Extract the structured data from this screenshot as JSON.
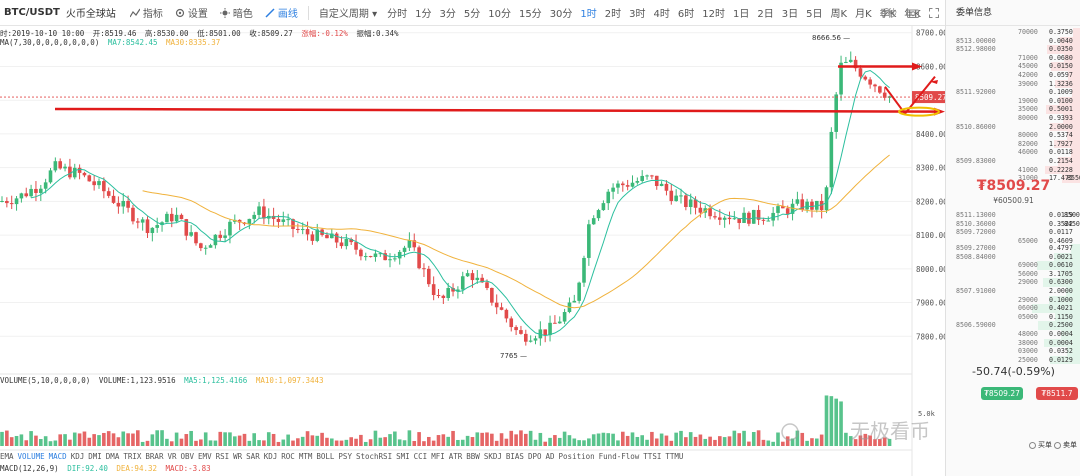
{
  "toolbar": {
    "symbol": "BTC/USDT",
    "exchange": "火币全球站",
    "indicators_label": "指标",
    "settings_label": "设置",
    "dark_label": "暗色",
    "draw_label": "画线",
    "custom_period_label": "自定义周期",
    "periods": [
      "分时",
      "1分",
      "3分",
      "5分",
      "10分",
      "15分",
      "30分",
      "1时",
      "2时",
      "3时",
      "4时",
      "6时",
      "12时",
      "1日",
      "2日",
      "3日",
      "5日",
      "周K",
      "月K",
      "季K",
      "年K"
    ],
    "active_period": "1时",
    "countdown": "0秒"
  },
  "ohlc_info": {
    "time": "时:2019-10-10 10:00",
    "open": "开:8519.46",
    "high": "高:8530.00",
    "low": "低:8501.00",
    "close": "收:8509.27",
    "change": "涨幅:-0.12%",
    "amplitude": "振幅:0.34%"
  },
  "ma_info": {
    "params": "MA(7,30,0,0,0,0,0,0,0)",
    "ma7": "MA7:8542.45",
    "ma30": "MA30:8335.37"
  },
  "price_labels": {
    "high_marker": "8666.56",
    "low_marker": "7765",
    "current_tag": "8509.27",
    "axis_ticks": [
      "8700.00",
      "8600.00",
      "8500.00",
      "8400.00",
      "8300.00",
      "8200.00",
      "8100.00",
      "8000.00",
      "7900.00",
      "7800.00"
    ]
  },
  "volume_info": {
    "params": "VOLUME(5,10,0,0,0,0)",
    "volume": "VOLUME:1,123.9516",
    "ma5": "MA5:1,125.4166",
    "ma10": "MA10:1,097.3443",
    "axis_tick": "5.0k"
  },
  "indicator_tabs": [
    "EMA",
    "VOLUME",
    "MACD",
    "KDJ",
    "DMI",
    "DMA",
    "TRIX",
    "BRAR",
    "VR",
    "OBV",
    "EMV",
    "RSI",
    "WR",
    "SAR",
    "KDJ",
    "ROC",
    "MTM",
    "BOLL",
    "PSY",
    "StochRSI",
    "SMI",
    "CCI",
    "MFI",
    "ATR",
    "BBW",
    "SKDJ",
    "BIAS",
    "DPO",
    "AD",
    "Position",
    "Fund-Flow",
    "TTSI",
    "TTMU"
  ],
  "macd_info": {
    "params": "MACD(12,26,9)",
    "dif": "DIF:92.40",
    "dea": "DEA:94.32",
    "macd": "MACD:-3.83"
  },
  "order_book": {
    "title": "委单信息",
    "asks": [
      {
        "p": "",
        "a": "70000",
        "t": "0.3750"
      },
      {
        "p": "8513.00000",
        "a": "",
        "t": "0.0040"
      },
      {
        "p": "8512.98000",
        "a": "",
        "t": "0.0350"
      },
      {
        "p": "",
        "a": "71000",
        "t": "0.0680"
      },
      {
        "p": "",
        "a": "45000",
        "t": "0.0150"
      },
      {
        "p": "",
        "a": "42000",
        "t": "0.0597"
      },
      {
        "p": "",
        "a": "39000",
        "t": "1.3236"
      },
      {
        "p": "8511.92000",
        "a": "",
        "t": "0.1009"
      },
      {
        "p": "",
        "a": "19000",
        "t": "0.0100"
      },
      {
        "p": "",
        "a": "35000",
        "t": "0.5001"
      },
      {
        "p": "",
        "a": "80000",
        "t": "0.9393"
      },
      {
        "p": "8510.86000",
        "a": "",
        "t": "2.0000"
      },
      {
        "p": "",
        "a": "80000",
        "t": "0.5374"
      },
      {
        "p": "",
        "a": "82000",
        "t": "1.7927"
      },
      {
        "p": "",
        "a": "46000",
        "t": "0.0118"
      },
      {
        "p": "8509.83000",
        "a": "",
        "t": "0.2154"
      },
      {
        "p": "",
        "a": "41000",
        "t": "0.2228"
      },
      {
        "p": "",
        "a": "31000",
        "t": "17.475"
      }
    ],
    "last_level_right": "8550",
    "current_price": "₮8509.27",
    "current_cny": "¥60500.91",
    "bids_top": [
      {
        "p": "8511.13000",
        "a": "",
        "t": "0.0119",
        "r": "8500"
      },
      {
        "p": "8510.36000",
        "a": "",
        "t": "0.3522",
        "r": "8450"
      },
      {
        "p": "8509.72000",
        "a": "",
        "t": "0.0117",
        "r": ""
      },
      {
        "p": "",
        "a": "65000",
        "t": "0.4609",
        "r": ""
      }
    ],
    "bids": [
      {
        "p": "8509.27000",
        "a": "",
        "t": "0.4797"
      },
      {
        "p": "8508.84000",
        "a": "",
        "t": "0.0021"
      },
      {
        "p": "",
        "a": "69000",
        "t": "0.0610"
      },
      {
        "p": "",
        "a": "56000",
        "t": "3.1705"
      },
      {
        "p": "",
        "a": "29000",
        "t": "0.6300"
      },
      {
        "p": "8507.91000",
        "a": "",
        "t": "2.0000"
      },
      {
        "p": "",
        "a": "29000",
        "t": "0.1000"
      },
      {
        "p": "",
        "a": "06000",
        "t": "0.4021"
      },
      {
        "p": "",
        "a": "05000",
        "t": "0.1150"
      },
      {
        "p": "8506.59000",
        "a": "",
        "t": "0.2500"
      },
      {
        "p": "",
        "a": "48000",
        "t": "0.0004"
      },
      {
        "p": "",
        "a": "38000",
        "t": "0.0004"
      },
      {
        "p": "",
        "a": "03000",
        "t": "0.0352"
      },
      {
        "p": "",
        "a": "25000",
        "t": "0.0129"
      }
    ],
    "change": "-50.74(-0.59%)",
    "buy_label": "₮8509.27",
    "sell_label": "₮8511.7",
    "legend_buy": "买单",
    "legend_sell": "卖单"
  },
  "watermark": "无极看币",
  "colors": {
    "up": "#3bb878",
    "down": "#e14a4a",
    "ma7": "#2bbf9e",
    "ma30": "#f0b23c",
    "annotation": "#e01b1b",
    "accent": "#2d7fe0"
  },
  "chart_data": {
    "type": "candlestick",
    "ylim": [
      7700,
      8720
    ],
    "annotations": {
      "horizontal_level": 8466,
      "resistance_level": 8600,
      "target_zone": 8465
    }
  }
}
